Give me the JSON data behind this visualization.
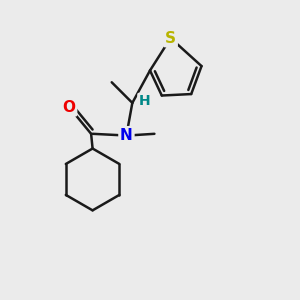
{
  "background_color": "#ebebeb",
  "bond_color": "#1a1a1a",
  "S_color": "#b8b400",
  "N_color": "#0000ee",
  "O_color": "#ee0000",
  "H_color": "#008888",
  "bond_width": 1.8,
  "figsize": [
    3.0,
    3.0
  ],
  "dpi": 100,
  "xlim": [
    0,
    10
  ],
  "ylim": [
    0,
    10
  ]
}
